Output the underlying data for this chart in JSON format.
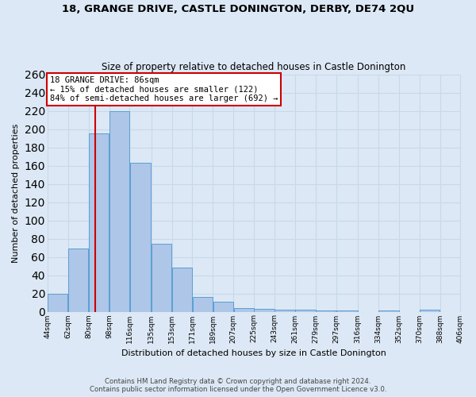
{
  "title1": "18, GRANGE DRIVE, CASTLE DONINGTON, DERBY, DE74 2QU",
  "title2": "Size of property relative to detached houses in Castle Donington",
  "xlabel": "Distribution of detached houses by size in Castle Donington",
  "ylabel": "Number of detached properties",
  "bar_edges": [
    44,
    62,
    80,
    98,
    116,
    135,
    153,
    171,
    189,
    207,
    225,
    243,
    261,
    279,
    297,
    316,
    334,
    352,
    370,
    388,
    406
  ],
  "bar_heights": [
    20,
    69,
    195,
    220,
    163,
    74,
    48,
    16,
    11,
    4,
    3,
    2,
    2,
    1,
    1,
    0,
    1,
    0,
    2,
    0
  ],
  "bar_color": "#aec6e8",
  "bar_edgecolor": "#5a9fd4",
  "grid_color": "#c8d8e8",
  "bg_color": "#dce8f5",
  "fig_color": "#dce8f5",
  "red_line_x": 86,
  "annotation_text": "18 GRANGE DRIVE: 86sqm\n← 15% of detached houses are smaller (122)\n84% of semi-detached houses are larger (692) →",
  "annotation_box_color": "#ffffff",
  "annotation_box_edge": "#cc0000",
  "ylim": [
    0,
    260
  ],
  "yticks": [
    0,
    20,
    40,
    60,
    80,
    100,
    120,
    140,
    160,
    180,
    200,
    220,
    240,
    260
  ],
  "footnote1": "Contains HM Land Registry data © Crown copyright and database right 2024.",
  "footnote2": "Contains public sector information licensed under the Open Government Licence v3.0.",
  "tick_labels": [
    "44sqm",
    "62sqm",
    "80sqm",
    "98sqm",
    "116sqm",
    "135sqm",
    "153sqm",
    "171sqm",
    "189sqm",
    "207sqm",
    "225sqm",
    "243sqm",
    "261sqm",
    "279sqm",
    "297sqm",
    "316sqm",
    "334sqm",
    "352sqm",
    "370sqm",
    "388sqm",
    "406sqm"
  ]
}
